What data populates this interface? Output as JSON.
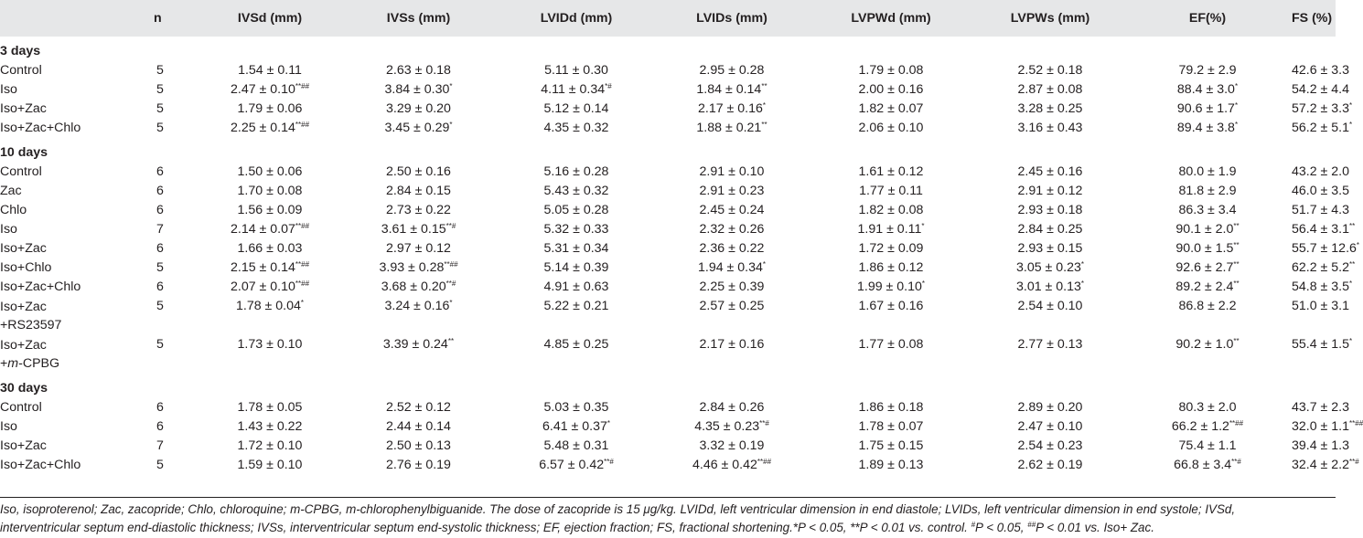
{
  "columns": [
    "",
    "n",
    "IVSd (mm)",
    "IVSs (mm)",
    "LVIDd (mm)",
    "LVIDs (mm)",
    "LVPWd (mm)",
    "LVPWs (mm)",
    "EF(%)",
    "FS (%)"
  ],
  "groups": [
    {
      "title": "3 days",
      "rows": [
        {
          "label": [
            "Control"
          ],
          "n": "5",
          "cells": [
            [
              "1.54 ± 0.11",
              ""
            ],
            [
              "2.63 ± 0.18",
              ""
            ],
            [
              "5.11 ± 0.30",
              ""
            ],
            [
              "2.95 ± 0.28",
              ""
            ],
            [
              "1.79 ± 0.08",
              ""
            ],
            [
              "2.52 ± 0.18",
              ""
            ],
            [
              "79.2 ± 2.9",
              ""
            ],
            [
              "42.6 ± 3.3",
              ""
            ]
          ]
        },
        {
          "label": [
            "Iso"
          ],
          "n": "5",
          "cells": [
            [
              "2.47 ± 0.10",
              "**##"
            ],
            [
              "3.84 ± 0.30",
              "*"
            ],
            [
              "4.11 ± 0.34",
              "*#"
            ],
            [
              "1.84 ± 0.14",
              "**"
            ],
            [
              "2.00 ± 0.16",
              ""
            ],
            [
              "2.87 ± 0.08",
              ""
            ],
            [
              "88.4 ± 3.0",
              "*"
            ],
            [
              "54.2 ± 4.4",
              ""
            ]
          ]
        },
        {
          "label": [
            "Iso+Zac"
          ],
          "n": "5",
          "cells": [
            [
              "1.79 ± 0.06",
              ""
            ],
            [
              "3.29 ± 0.20",
              ""
            ],
            [
              "5.12 ± 0.14",
              ""
            ],
            [
              "2.17 ± 0.16",
              "*"
            ],
            [
              "1.82 ± 0.07",
              ""
            ],
            [
              "3.28 ± 0.25",
              ""
            ],
            [
              "90.6 ± 1.7",
              "*"
            ],
            [
              "57.2 ± 3.3",
              "*"
            ]
          ]
        },
        {
          "label": [
            "Iso+Zac+Chlo"
          ],
          "n": "5",
          "cells": [
            [
              "2.25 ± 0.14",
              "**##"
            ],
            [
              "3.45 ± 0.29",
              "*"
            ],
            [
              "4.35 ± 0.32",
              ""
            ],
            [
              "1.88 ± 0.21",
              "**"
            ],
            [
              "2.06 ± 0.10",
              ""
            ],
            [
              "3.16 ± 0.43",
              ""
            ],
            [
              "89.4 ± 3.8",
              "*"
            ],
            [
              "56.2 ± 5.1",
              "*"
            ]
          ]
        }
      ]
    },
    {
      "title": "10 days",
      "rows": [
        {
          "label": [
            "Control"
          ],
          "n": "6",
          "cells": [
            [
              "1.50 ± 0.06",
              ""
            ],
            [
              "2.50 ± 0.16",
              ""
            ],
            [
              "5.16 ± 0.28",
              ""
            ],
            [
              "2.91 ± 0.10",
              ""
            ],
            [
              "1.61 ± 0.12",
              ""
            ],
            [
              "2.45 ± 0.16",
              ""
            ],
            [
              "80.0 ± 1.9",
              ""
            ],
            [
              "43.2 ± 2.0",
              ""
            ]
          ]
        },
        {
          "label": [
            "Zac"
          ],
          "n": "6",
          "cells": [
            [
              "1.70 ± 0.08",
              ""
            ],
            [
              "2.84 ± 0.15",
              ""
            ],
            [
              "5.43 ± 0.32",
              ""
            ],
            [
              "2.91 ± 0.23",
              ""
            ],
            [
              "1.77 ± 0.11",
              ""
            ],
            [
              "2.91 ± 0.12",
              ""
            ],
            [
              "81.8 ± 2.9",
              ""
            ],
            [
              "46.0 ± 3.5",
              ""
            ]
          ]
        },
        {
          "label": [
            "Chlo"
          ],
          "n": "6",
          "cells": [
            [
              "1.56 ± 0.09",
              ""
            ],
            [
              "2.73 ± 0.22",
              ""
            ],
            [
              "5.05 ± 0.28",
              ""
            ],
            [
              "2.45 ± 0.24",
              ""
            ],
            [
              "1.82 ± 0.08",
              ""
            ],
            [
              "2.93 ± 0.18",
              ""
            ],
            [
              "86.3 ± 3.4",
              ""
            ],
            [
              "51.7 ± 4.3",
              ""
            ]
          ]
        },
        {
          "label": [
            "Iso"
          ],
          "n": "7",
          "cells": [
            [
              "2.14 ± 0.07",
              "**##"
            ],
            [
              "3.61 ± 0.15",
              "**#"
            ],
            [
              "5.32 ± 0.33",
              ""
            ],
            [
              "2.32 ± 0.26",
              ""
            ],
            [
              "1.91 ± 0.11",
              "*"
            ],
            [
              "2.84 ± 0.25",
              ""
            ],
            [
              "90.1 ± 2.0",
              "**"
            ],
            [
              "56.4 ± 3.1",
              "**"
            ]
          ]
        },
        {
          "label": [
            "Iso+Zac"
          ],
          "n": "6",
          "cells": [
            [
              "1.66 ± 0.03",
              ""
            ],
            [
              "2.97 ± 0.12",
              ""
            ],
            [
              "5.31 ± 0.34",
              ""
            ],
            [
              "2.36 ± 0.22",
              ""
            ],
            [
              "1.72 ± 0.09",
              ""
            ],
            [
              "2.93 ± 0.15",
              ""
            ],
            [
              "90.0 ± 1.5",
              "**"
            ],
            [
              "55.7 ± 12.6",
              "*"
            ]
          ]
        },
        {
          "label": [
            "Iso+Chlo"
          ],
          "n": "5",
          "cells": [
            [
              "2.15 ± 0.14",
              "**##"
            ],
            [
              "3.93 ± 0.28",
              "**##"
            ],
            [
              "5.14 ± 0.39",
              ""
            ],
            [
              "1.94 ± 0.34",
              "*"
            ],
            [
              "1.86 ± 0.12",
              ""
            ],
            [
              "3.05 ± 0.23",
              "*"
            ],
            [
              "92.6 ± 2.7",
              "**"
            ],
            [
              "62.2 ± 5.2",
              "**"
            ]
          ]
        },
        {
          "label": [
            "Iso+Zac+Chlo"
          ],
          "n": "6",
          "cells": [
            [
              "2.07 ± 0.10",
              "**##"
            ],
            [
              "3.68 ± 0.20",
              "**#"
            ],
            [
              "4.91 ± 0.63",
              ""
            ],
            [
              "2.25 ± 0.39",
              ""
            ],
            [
              "1.99 ± 0.10",
              "*"
            ],
            [
              "3.01 ± 0.13",
              "*"
            ],
            [
              "89.2 ± 2.4",
              "**"
            ],
            [
              "54.8 ± 3.5",
              "*"
            ]
          ]
        },
        {
          "label": [
            "Iso+Zac",
            "+RS23597"
          ],
          "n": "5",
          "cells": [
            [
              "1.78 ± 0.04",
              "*"
            ],
            [
              "3.24 ± 0.16",
              "*"
            ],
            [
              "5.22 ± 0.21",
              ""
            ],
            [
              "2.57 ± 0.25",
              ""
            ],
            [
              "1.67 ± 0.16",
              ""
            ],
            [
              "2.54 ± 0.10",
              ""
            ],
            [
              "86.8 ± 2.2",
              ""
            ],
            [
              "51.0 ± 3.1",
              ""
            ]
          ]
        },
        {
          "label": [
            "Iso+Zac",
            "+m-CPBG"
          ],
          "n": "5",
          "cells": [
            [
              "1.73 ± 0.10",
              ""
            ],
            [
              "3.39 ± 0.24",
              "**"
            ],
            [
              "4.85 ± 0.25",
              ""
            ],
            [
              "2.17 ± 0.16",
              ""
            ],
            [
              "1.77 ± 0.08",
              ""
            ],
            [
              "2.77 ± 0.13",
              ""
            ],
            [
              "90.2 ± 1.0",
              "**"
            ],
            [
              "55.4 ± 1.5",
              "*"
            ]
          ]
        }
      ]
    },
    {
      "title": "30 days",
      "rows": [
        {
          "label": [
            "Control"
          ],
          "n": "6",
          "cells": [
            [
              "1.78 ± 0.05",
              ""
            ],
            [
              "2.52 ± 0.12",
              ""
            ],
            [
              "5.03 ± 0.35",
              ""
            ],
            [
              "2.84 ± 0.26",
              ""
            ],
            [
              "1.86 ± 0.18",
              ""
            ],
            [
              "2.89 ± 0.20",
              ""
            ],
            [
              "80.3 ± 2.0",
              ""
            ],
            [
              "43.7 ± 2.3",
              ""
            ]
          ]
        },
        {
          "label": [
            "Iso"
          ],
          "n": "6",
          "cells": [
            [
              "1.43 ± 0.22",
              ""
            ],
            [
              "2.44 ± 0.14",
              ""
            ],
            [
              "6.41 ± 0.37",
              "*"
            ],
            [
              "4.35 ± 0.23",
              "**#"
            ],
            [
              "1.78 ± 0.07",
              ""
            ],
            [
              "2.47 ± 0.10",
              ""
            ],
            [
              "66.2 ± 1.2",
              "**##"
            ],
            [
              "32.0 ± 1.1",
              "**##"
            ]
          ]
        },
        {
          "label": [
            "Iso+Zac"
          ],
          "n": "7",
          "cells": [
            [
              "1.72 ± 0.10",
              ""
            ],
            [
              "2.50 ± 0.13",
              ""
            ],
            [
              "5.48 ± 0.31",
              ""
            ],
            [
              "3.32 ± 0.19",
              ""
            ],
            [
              "1.75 ± 0.15",
              ""
            ],
            [
              "2.54 ± 0.23",
              ""
            ],
            [
              "75.4 ± 1.1",
              ""
            ],
            [
              "39.4 ± 1.3",
              ""
            ]
          ]
        },
        {
          "label": [
            "Iso+Zac+Chlo"
          ],
          "n": "5",
          "cells": [
            [
              "1.59 ± 0.10",
              ""
            ],
            [
              "2.76 ± 0.19",
              ""
            ],
            [
              "6.57 ± 0.42",
              "**#"
            ],
            [
              "4.46 ± 0.42",
              "**##"
            ],
            [
              "1.89 ± 0.13",
              ""
            ],
            [
              "2.62 ± 0.19",
              ""
            ],
            [
              "66.8 ± 3.4",
              "**#"
            ],
            [
              "32.4 ± 2.2",
              "**#"
            ]
          ]
        }
      ]
    }
  ],
  "footnote": {
    "line1": "Iso, isoproterenol; Zac, zacopride; Chlo, chloroquine; m-CPBG, m-chlorophenylbiguanide. The dose of zacopride is 15 μg/kg. LVIDd, left ventricular dimension in end diastole; LVIDs, left ventricular dimension in end systole; IVSd,",
    "line2a": "interventricular septum end-diastolic thickness; IVSs, interventricular septum end-systolic thickness; EF, ejection fraction; FS, fractional shortening.*P < 0.05, **P < 0.01 vs. control. ",
    "sup1": "#",
    "line2b": "P < 0.05, ",
    "sup2": "##",
    "line2c": "P < 0.01 vs. Iso+ Zac."
  }
}
